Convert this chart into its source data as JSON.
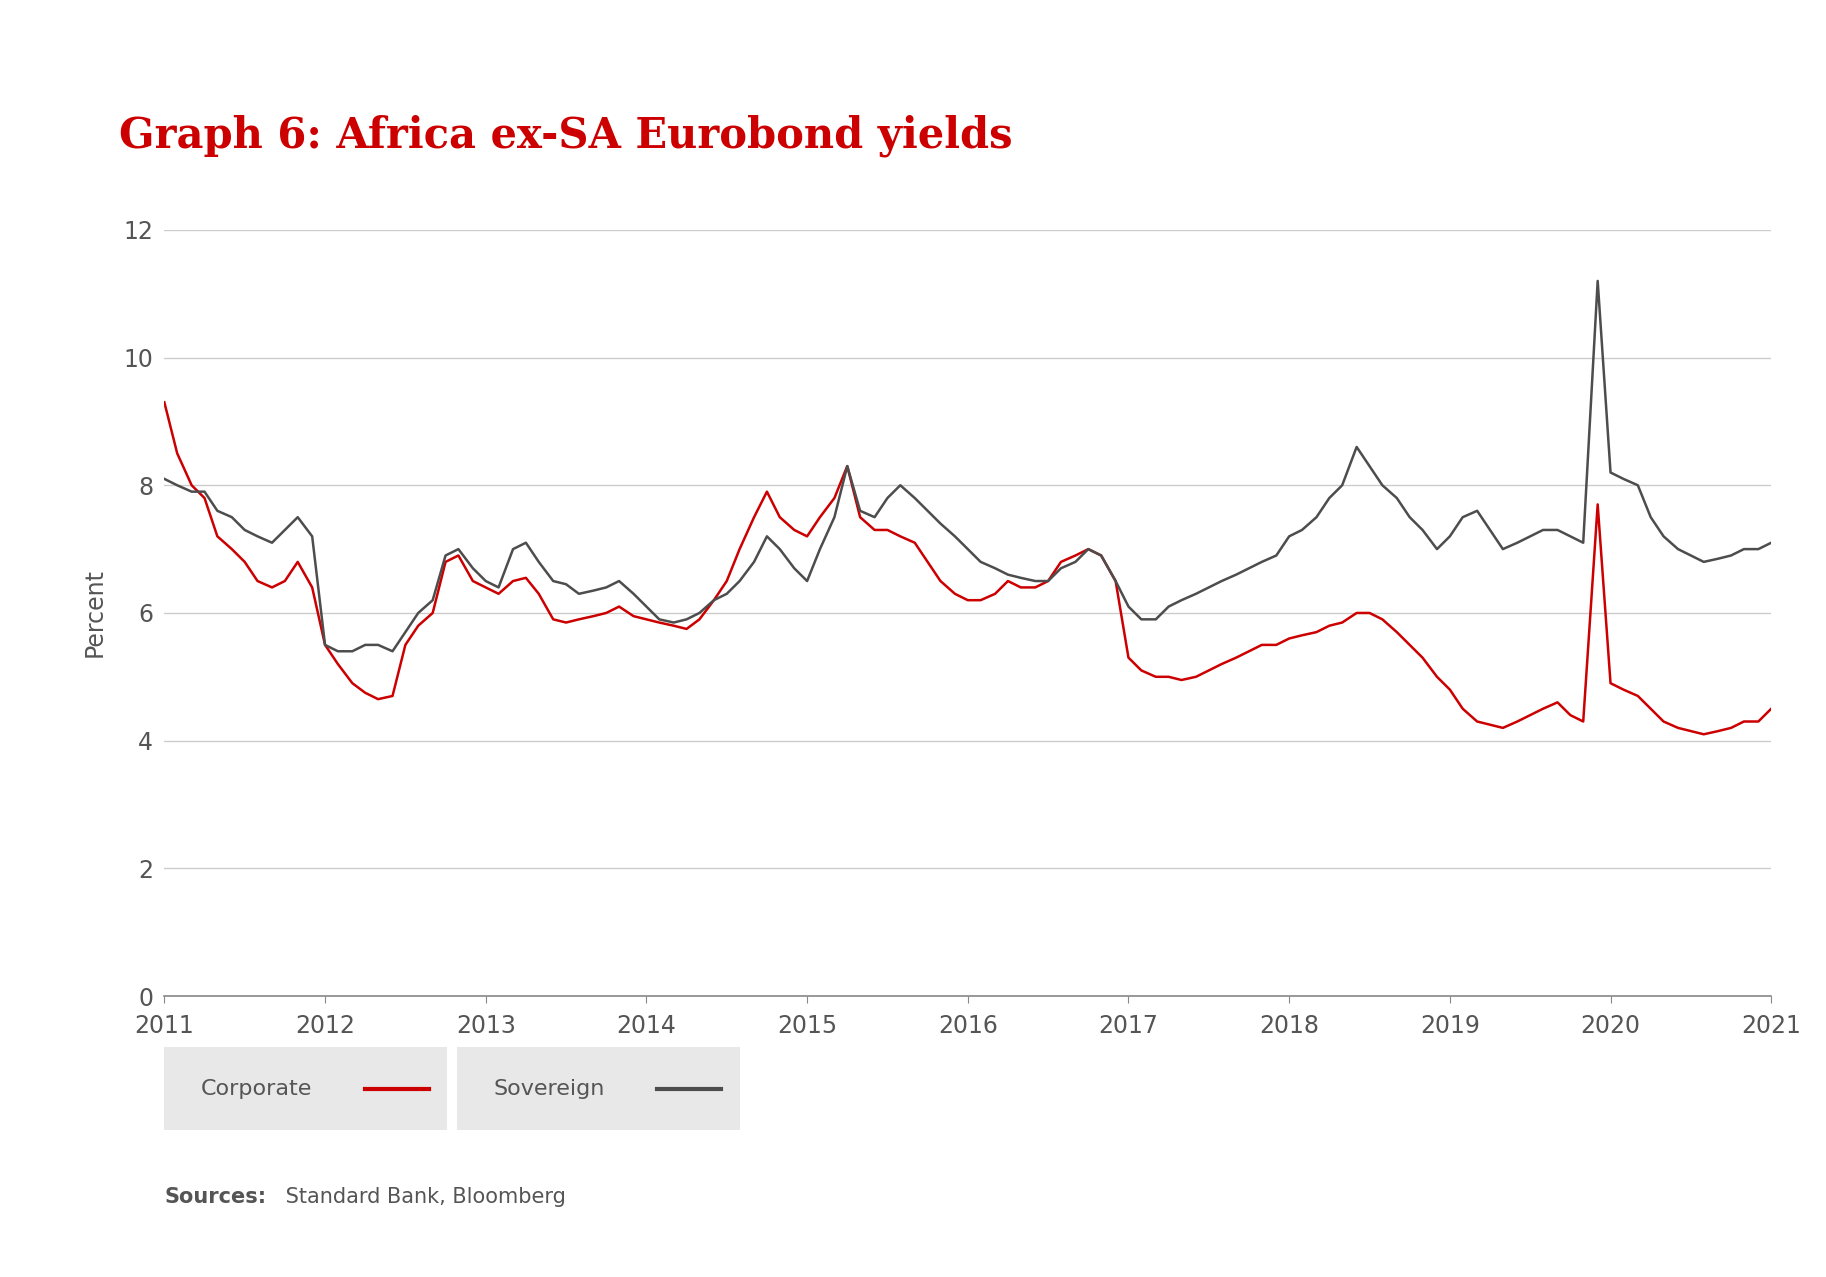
{
  "title": "Graph 6: Africa ex-SA Eurobond yields",
  "title_color": "#cc0000",
  "ylabel": "Percent",
  "ylabel_color": "#555555",
  "sources_bold": "Sources:",
  "sources_rest": " Standard Bank, Bloomberg",
  "ylim": [
    0,
    12
  ],
  "yticks": [
    0,
    2,
    4,
    6,
    8,
    10,
    12
  ],
  "background_color": "#ffffff",
  "grid_color": "#cccccc",
  "corporate_color": "#cc0000",
  "sovereign_color": "#4d4d4d",
  "corporate_label": "Corporate",
  "sovereign_label": "Sovereign",
  "corporate_data": {
    "dates": [
      2011.0,
      2011.08,
      2011.17,
      2011.25,
      2011.33,
      2011.42,
      2011.5,
      2011.58,
      2011.67,
      2011.75,
      2011.83,
      2011.92,
      2012.0,
      2012.08,
      2012.17,
      2012.25,
      2012.33,
      2012.42,
      2012.5,
      2012.58,
      2012.67,
      2012.75,
      2012.83,
      2012.92,
      2013.0,
      2013.08,
      2013.17,
      2013.25,
      2013.33,
      2013.42,
      2013.5,
      2013.58,
      2013.67,
      2013.75,
      2013.83,
      2013.92,
      2014.0,
      2014.08,
      2014.17,
      2014.25,
      2014.33,
      2014.42,
      2014.5,
      2014.58,
      2014.67,
      2014.75,
      2014.83,
      2014.92,
      2015.0,
      2015.08,
      2015.17,
      2015.25,
      2015.33,
      2015.42,
      2015.5,
      2015.58,
      2015.67,
      2015.75,
      2015.83,
      2015.92,
      2016.0,
      2016.08,
      2016.17,
      2016.25,
      2016.33,
      2016.42,
      2016.5,
      2016.58,
      2016.67,
      2016.75,
      2016.83,
      2016.92,
      2017.0,
      2017.08,
      2017.17,
      2017.25,
      2017.33,
      2017.42,
      2017.5,
      2017.58,
      2017.67,
      2017.75,
      2017.83,
      2017.92,
      2018.0,
      2018.08,
      2018.17,
      2018.25,
      2018.33,
      2018.42,
      2018.5,
      2018.58,
      2018.67,
      2018.75,
      2018.83,
      2018.92,
      2019.0,
      2019.08,
      2019.17,
      2019.25,
      2019.33,
      2019.42,
      2019.5,
      2019.58,
      2019.67,
      2019.75,
      2019.83,
      2019.92,
      2020.0,
      2020.08,
      2020.17,
      2020.25,
      2020.33,
      2020.42,
      2020.5,
      2020.58,
      2020.67,
      2020.75,
      2020.83,
      2020.92,
      2021.0
    ],
    "values": [
      9.3,
      8.5,
      8.0,
      7.8,
      7.2,
      7.0,
      6.8,
      6.5,
      6.4,
      6.5,
      6.8,
      6.4,
      5.5,
      5.2,
      4.9,
      4.75,
      4.65,
      4.7,
      5.5,
      5.8,
      6.0,
      6.8,
      6.9,
      6.5,
      6.4,
      6.3,
      6.5,
      6.55,
      6.3,
      5.9,
      5.85,
      5.9,
      5.95,
      6.0,
      6.1,
      5.95,
      5.9,
      5.85,
      5.8,
      5.75,
      5.9,
      6.2,
      6.5,
      7.0,
      7.5,
      7.9,
      7.5,
      7.3,
      7.2,
      7.5,
      7.8,
      8.3,
      7.5,
      7.3,
      7.3,
      7.2,
      7.1,
      6.8,
      6.5,
      6.3,
      6.2,
      6.2,
      6.3,
      6.5,
      6.4,
      6.4,
      6.5,
      6.8,
      6.9,
      7.0,
      6.9,
      6.5,
      5.3,
      5.1,
      5.0,
      5.0,
      4.95,
      5.0,
      5.1,
      5.2,
      5.3,
      5.4,
      5.5,
      5.5,
      5.6,
      5.65,
      5.7,
      5.8,
      5.85,
      6.0,
      6.0,
      5.9,
      5.7,
      5.5,
      5.3,
      5.0,
      4.8,
      4.5,
      4.3,
      4.25,
      4.2,
      4.3,
      4.4,
      4.5,
      4.6,
      4.4,
      4.3,
      7.7,
      4.9,
      4.8,
      4.7,
      4.5,
      4.3,
      4.2,
      4.15,
      4.1,
      4.15,
      4.2,
      4.3,
      4.3,
      4.5
    ]
  },
  "sovereign_data": {
    "dates": [
      2011.0,
      2011.08,
      2011.17,
      2011.25,
      2011.33,
      2011.42,
      2011.5,
      2011.58,
      2011.67,
      2011.75,
      2011.83,
      2011.92,
      2012.0,
      2012.08,
      2012.17,
      2012.25,
      2012.33,
      2012.42,
      2012.5,
      2012.58,
      2012.67,
      2012.75,
      2012.83,
      2012.92,
      2013.0,
      2013.08,
      2013.17,
      2013.25,
      2013.33,
      2013.42,
      2013.5,
      2013.58,
      2013.67,
      2013.75,
      2013.83,
      2013.92,
      2014.0,
      2014.08,
      2014.17,
      2014.25,
      2014.33,
      2014.42,
      2014.5,
      2014.58,
      2014.67,
      2014.75,
      2014.83,
      2014.92,
      2015.0,
      2015.08,
      2015.17,
      2015.25,
      2015.33,
      2015.42,
      2015.5,
      2015.58,
      2015.67,
      2015.75,
      2015.83,
      2015.92,
      2016.0,
      2016.08,
      2016.17,
      2016.25,
      2016.33,
      2016.42,
      2016.5,
      2016.58,
      2016.67,
      2016.75,
      2016.83,
      2016.92,
      2017.0,
      2017.08,
      2017.17,
      2017.25,
      2017.33,
      2017.42,
      2017.5,
      2017.58,
      2017.67,
      2017.75,
      2017.83,
      2017.92,
      2018.0,
      2018.08,
      2018.17,
      2018.25,
      2018.33,
      2018.42,
      2018.5,
      2018.58,
      2018.67,
      2018.75,
      2018.83,
      2018.92,
      2019.0,
      2019.08,
      2019.17,
      2019.25,
      2019.33,
      2019.42,
      2019.5,
      2019.58,
      2019.67,
      2019.75,
      2019.83,
      2019.92,
      2020.0,
      2020.08,
      2020.17,
      2020.25,
      2020.33,
      2020.42,
      2020.5,
      2020.58,
      2020.67,
      2020.75,
      2020.83,
      2020.92,
      2021.0
    ],
    "values": [
      8.1,
      8.0,
      7.9,
      7.9,
      7.6,
      7.5,
      7.3,
      7.2,
      7.1,
      7.3,
      7.5,
      7.2,
      5.5,
      5.4,
      5.4,
      5.5,
      5.5,
      5.4,
      5.7,
      6.0,
      6.2,
      6.9,
      7.0,
      6.7,
      6.5,
      6.4,
      7.0,
      7.1,
      6.8,
      6.5,
      6.45,
      6.3,
      6.35,
      6.4,
      6.5,
      6.3,
      6.1,
      5.9,
      5.85,
      5.9,
      6.0,
      6.2,
      6.3,
      6.5,
      6.8,
      7.2,
      7.0,
      6.7,
      6.5,
      7.0,
      7.5,
      8.3,
      7.6,
      7.5,
      7.8,
      8.0,
      7.8,
      7.6,
      7.4,
      7.2,
      7.0,
      6.8,
      6.7,
      6.6,
      6.55,
      6.5,
      6.5,
      6.7,
      6.8,
      7.0,
      6.9,
      6.5,
      6.1,
      5.9,
      5.9,
      6.1,
      6.2,
      6.3,
      6.4,
      6.5,
      6.6,
      6.7,
      6.8,
      6.9,
      7.2,
      7.3,
      7.5,
      7.8,
      8.0,
      8.6,
      8.3,
      8.0,
      7.8,
      7.5,
      7.3,
      7.0,
      7.2,
      7.5,
      7.6,
      7.3,
      7.0,
      7.1,
      7.2,
      7.3,
      7.3,
      7.2,
      7.1,
      11.2,
      8.2,
      8.1,
      8.0,
      7.5,
      7.2,
      7.0,
      6.9,
      6.8,
      6.85,
      6.9,
      7.0,
      7.0,
      7.1
    ]
  }
}
